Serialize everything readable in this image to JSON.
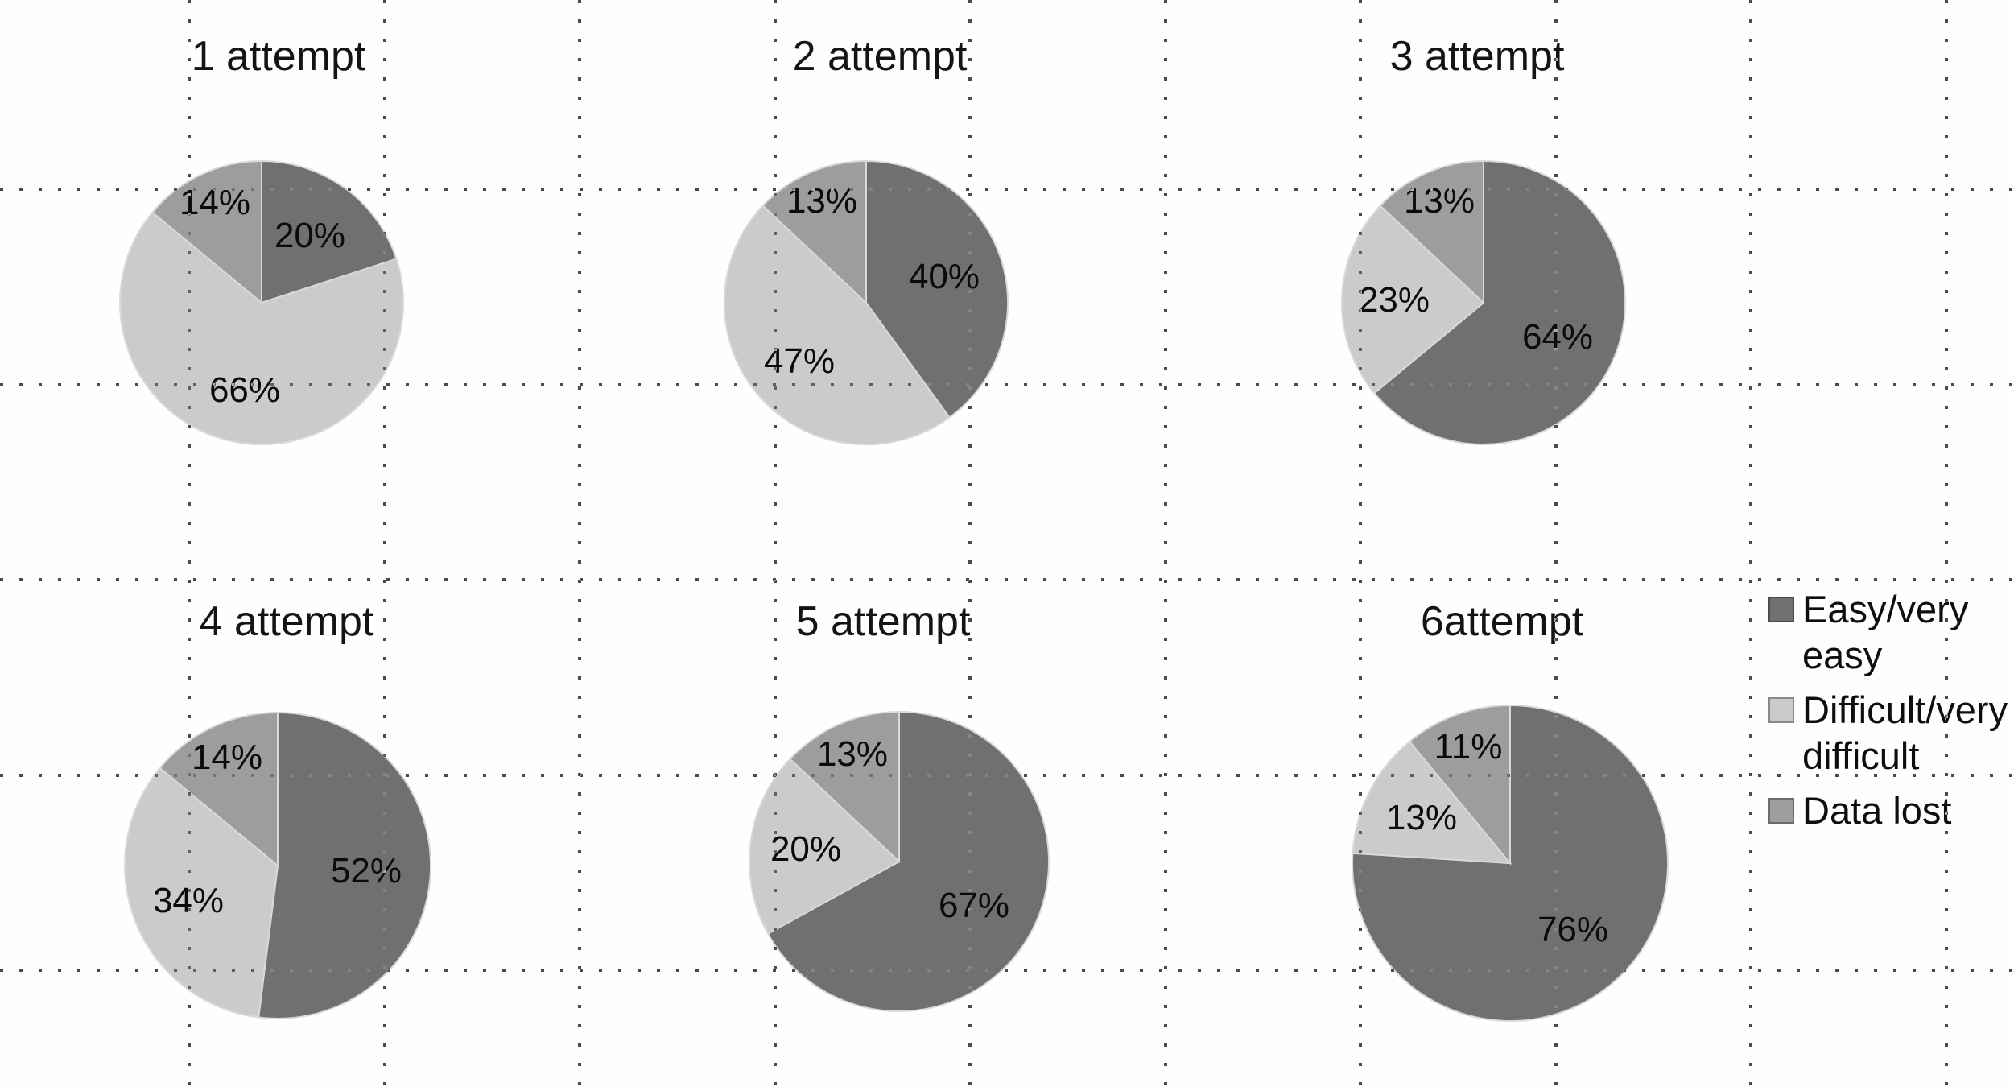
{
  "figure": {
    "background": "#fefefe",
    "colors": {
      "easy": "#707070",
      "difficult": "#cbcbcb",
      "lost": "#9d9d9d",
      "grid_dot": "#4a4a4a",
      "text": "#0b0b0b"
    },
    "legend": {
      "items": [
        {
          "key": "easy",
          "label": "Easy/very easy",
          "lines": "Easy/very\neasy",
          "color": "#707070"
        },
        {
          "key": "difficult",
          "label": "Difficult/very difficult",
          "lines": "Difficult/very\ndifficult",
          "color": "#cbcbcb"
        },
        {
          "key": "lost",
          "label": "Data lost",
          "lines": "Data lost",
          "color": "#9d9d9d"
        }
      ]
    }
  },
  "chart_data": [
    {
      "type": "pie",
      "title": "1 attempt",
      "slices": [
        {
          "key": "easy",
          "label": "Easy/very easy",
          "value": 20,
          "value_label": "20%"
        },
        {
          "key": "difficult",
          "label": "Difficult/very difficult",
          "value": 66,
          "value_label": "66%"
        },
        {
          "key": "lost",
          "label": "Data lost",
          "value": 14,
          "value_label": "14%"
        }
      ]
    },
    {
      "type": "pie",
      "title": "2 attempt",
      "slices": [
        {
          "key": "easy",
          "label": "Easy/very easy",
          "value": 40,
          "value_label": "40%"
        },
        {
          "key": "difficult",
          "label": "Difficult/very difficult",
          "value": 47,
          "value_label": "47%"
        },
        {
          "key": "lost",
          "label": "Data lost",
          "value": 13,
          "value_label": "13%"
        }
      ]
    },
    {
      "type": "pie",
      "title": "3 attempt",
      "slices": [
        {
          "key": "easy",
          "label": "Easy/very easy",
          "value": 64,
          "value_label": "64%"
        },
        {
          "key": "difficult",
          "label": "Difficult/very difficult",
          "value": 23,
          "value_label": "23%"
        },
        {
          "key": "lost",
          "label": "Data lost",
          "value": 13,
          "value_label": "13%"
        }
      ]
    },
    {
      "type": "pie",
      "title": "4 attempt",
      "slices": [
        {
          "key": "easy",
          "label": "Easy/very easy",
          "value": 52,
          "value_label": "52%"
        },
        {
          "key": "difficult",
          "label": "Difficult/very difficult",
          "value": 34,
          "value_label": "34%"
        },
        {
          "key": "lost",
          "label": "Data lost",
          "value": 14,
          "value_label": "14%"
        }
      ]
    },
    {
      "type": "pie",
      "title": "5 attempt",
      "slices": [
        {
          "key": "easy",
          "label": "Easy/very easy",
          "value": 67,
          "value_label": "67%"
        },
        {
          "key": "difficult",
          "label": "Difficult/very difficult",
          "value": 20,
          "value_label": "20%"
        },
        {
          "key": "lost",
          "label": "Data lost",
          "value": 13,
          "value_label": "13%"
        }
      ]
    },
    {
      "type": "pie",
      "title": "6attempt",
      "slices": [
        {
          "key": "easy",
          "label": "Easy/very easy",
          "value": 76,
          "value_label": "76%"
        },
        {
          "key": "difficult",
          "label": "Difficult/very difficult",
          "value": 13,
          "value_label": "13%"
        },
        {
          "key": "lost",
          "label": "Data lost",
          "value": 11,
          "value_label": "11%"
        }
      ]
    }
  ]
}
